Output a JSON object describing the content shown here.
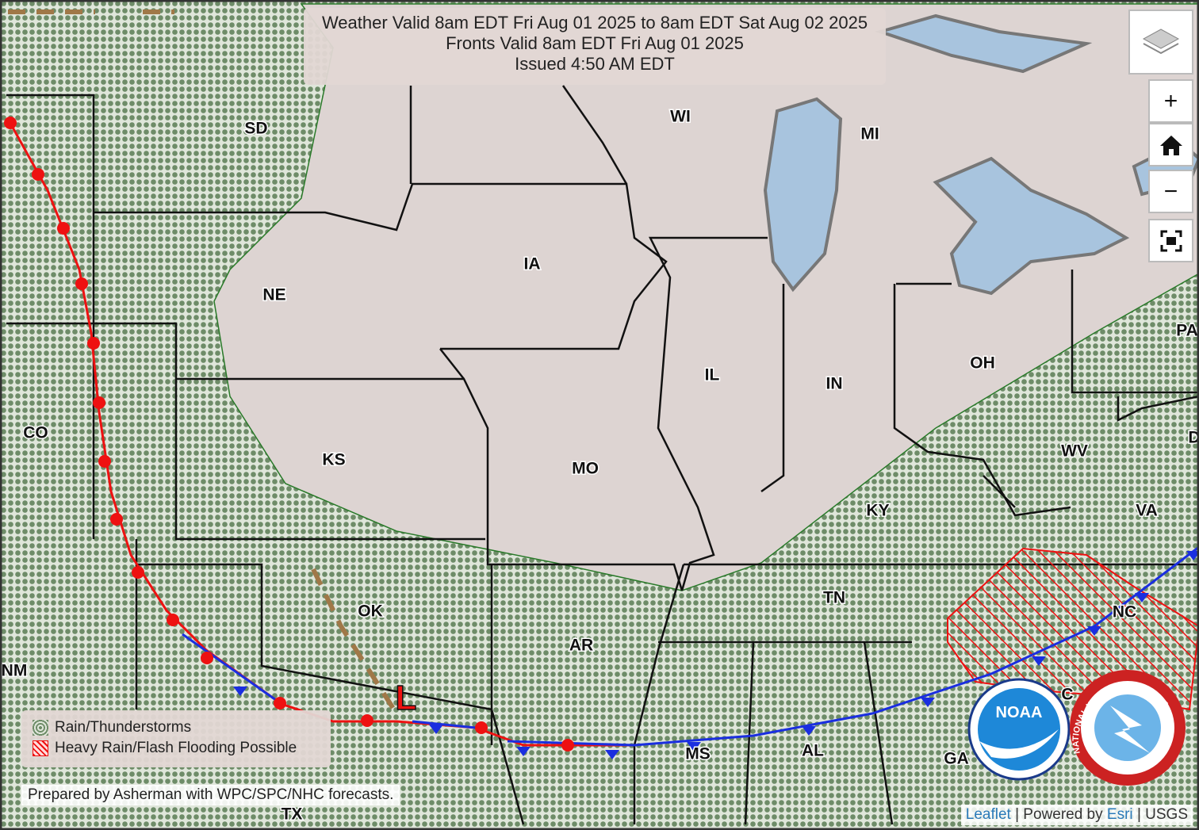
{
  "header": {
    "lines": [
      "Weather Valid 8am EDT Fri Aug 01 2025 to 8am EDT Sat Aug 02 2025",
      "Fronts Valid 8am EDT Fri Aug 01 2025",
      "Issued 4:50 AM EDT"
    ]
  },
  "states": [
    "SD",
    "NE",
    "KS",
    "CO",
    "OK",
    "TX",
    "NM",
    "IA",
    "MO",
    "AR",
    "WI",
    "MI",
    "IL",
    "IN",
    "OH",
    "KY",
    "TN",
    "MS",
    "AL",
    "GA",
    "WV",
    "VA",
    "NC",
    "PA",
    "D",
    "C"
  ],
  "front_low": "L",
  "legend": {
    "items": [
      "Rain/Thunderstorms",
      "Heavy Rain/Flash Flooding Possible"
    ]
  },
  "credit": "Prepared by Asherman with WPC/SPC/NHC forecasts.",
  "controls": {
    "zoom_in": "+",
    "zoom_out": "−"
  },
  "logos": {
    "noaa": "NOAA",
    "nws": "NATIONAL WEATHER SERVICE"
  },
  "attribution": {
    "leaflet": "Leaflet",
    "powered": "| Powered by",
    "esri": "Esri",
    "usgs": "| USGS"
  }
}
